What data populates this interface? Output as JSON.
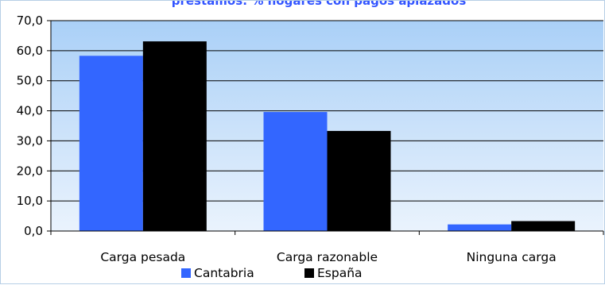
{
  "chart_data": {
    "type": "bar",
    "title": "préstamos: % hogares con pagos aplazados",
    "categories": [
      "Carga pesada",
      "Carga razonable",
      "Ninguna carga"
    ],
    "series": [
      {
        "name": "Cantabria",
        "values": [
          58.3,
          39.6,
          2.2
        ],
        "color": "#3366ff"
      },
      {
        "name": "España",
        "values": [
          63.1,
          33.3,
          3.3
        ],
        "color": "#000000"
      }
    ],
    "ylim": [
      0,
      70
    ],
    "yticks": [
      "0,0",
      "10,0",
      "20,0",
      "30,0",
      "40,0",
      "50,0",
      "60,0",
      "70,0"
    ],
    "grid": true,
    "legend": "bottom",
    "plot_background": {
      "top": "#aad0f7",
      "bottom": "#eaf3fd"
    }
  }
}
